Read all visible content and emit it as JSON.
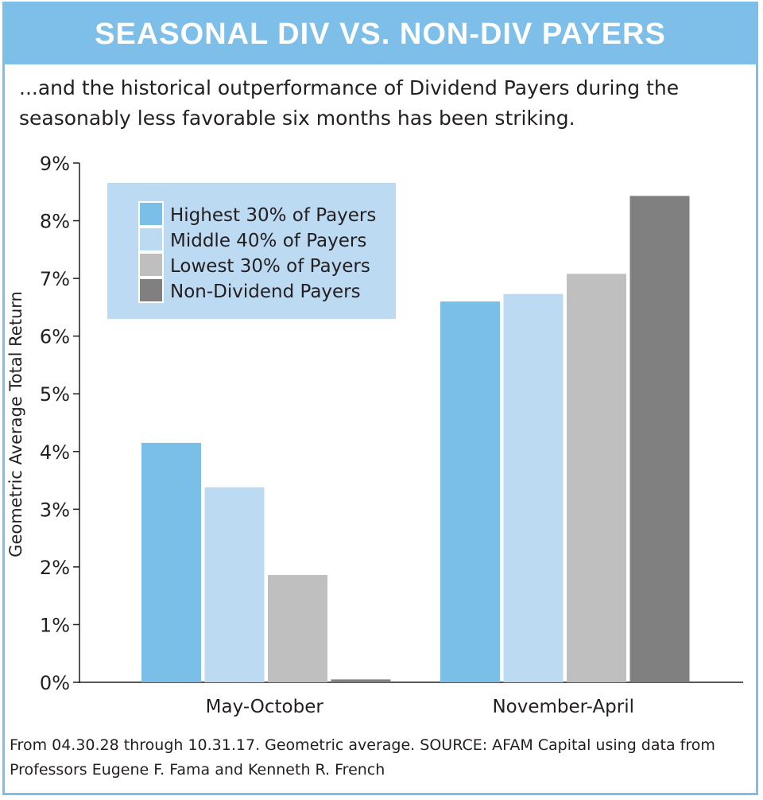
{
  "header": {
    "title": "SEASONAL DIV VS. NON-DIV PAYERS"
  },
  "subtitle": "...and the historical outperformance of Dividend Payers during the seasonably less favorable six months has been striking.",
  "footnote": "From 04.30.28 through 10.31.17. Geometric average. SOURCE: AFAM Capital using data from Professors Eugene F. Fama and Kenneth R. French",
  "chart_data": {
    "type": "bar",
    "title": "SEASONAL DIV VS. NON-DIV PAYERS",
    "xlabel": "",
    "ylabel": "Geometric Average Total Return",
    "ylim": [
      0,
      9
    ],
    "yticks": [
      "0%",
      "1%",
      "2%",
      "3%",
      "4%",
      "5%",
      "6%",
      "7%",
      "8%",
      "9%"
    ],
    "categories": [
      "May-October",
      "November-April"
    ],
    "series": [
      {
        "name": "Highest 30% of Payers",
        "color": "#7abfe8",
        "values": [
          4.15,
          6.6
        ]
      },
      {
        "name": "Middle 40% of Payers",
        "color": "#bcdaf2",
        "values": [
          3.38,
          6.73
        ]
      },
      {
        "name": "Lowest 30% of Payers",
        "color": "#bfbfbf",
        "values": [
          1.86,
          7.08
        ]
      },
      {
        "name": "Non-Dividend Payers",
        "color": "#808080",
        "values": [
          0.05,
          8.43
        ]
      }
    ],
    "legend_position": "top-left",
    "legend_background": "#bcdaf2",
    "grid": false
  }
}
